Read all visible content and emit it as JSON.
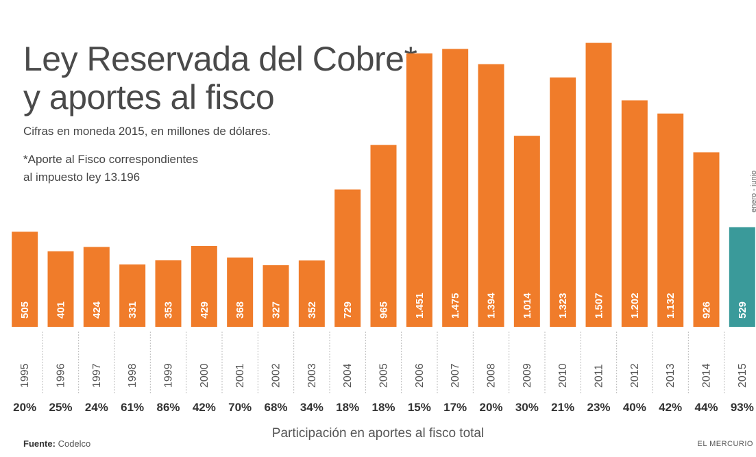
{
  "title_line1": "Ley Reservada del Cobre*",
  "title_line2": "y aportes al fisco",
  "subtitle": "Cifras en moneda 2015, en millones de dólares.",
  "note_line1": "*Aporte al Fisco correspondientes",
  "note_line2": "al impuesto ley 13.196",
  "source_label": "Fuente:",
  "source_name": "Codelco",
  "brand": "EL MERCURIO",
  "period_note": "enero - junio",
  "colors": {
    "bar": "#f07c2a",
    "bar_highlight": "#3a9a9a"
  },
  "chart_data": {
    "type": "bar",
    "categories": [
      "1995",
      "1996",
      "1997",
      "1998",
      "1999",
      "2000",
      "2001",
      "2002",
      "2003",
      "2004",
      "2005",
      "2006",
      "2007",
      "2008",
      "2009",
      "2010",
      "2011",
      "2012",
      "2013",
      "2014",
      "2015"
    ],
    "values": [
      505,
      401,
      424,
      331,
      353,
      429,
      368,
      327,
      352,
      729,
      965,
      1451,
      1475,
      1394,
      1014,
      1323,
      1507,
      1202,
      1132,
      926,
      529
    ],
    "value_labels": [
      "505",
      "401",
      "424",
      "331",
      "353",
      "429",
      "368",
      "327",
      "352",
      "729",
      "965",
      "1.451",
      "1.475",
      "1.394",
      "1.014",
      "1.323",
      "1.507",
      "1.202",
      "1.132",
      "926",
      "529"
    ],
    "participation": [
      "20%",
      "25%",
      "24%",
      "61%",
      "86%",
      "42%",
      "70%",
      "68%",
      "34%",
      "18%",
      "18%",
      "15%",
      "17%",
      "20%",
      "30%",
      "21%",
      "23%",
      "40%",
      "42%",
      "44%",
      "93%"
    ],
    "participation_label": "Participación en aportes al fisco total",
    "highlight_index": 20,
    "ylim": [
      0,
      1560
    ],
    "grid": false,
    "legend": "none"
  }
}
